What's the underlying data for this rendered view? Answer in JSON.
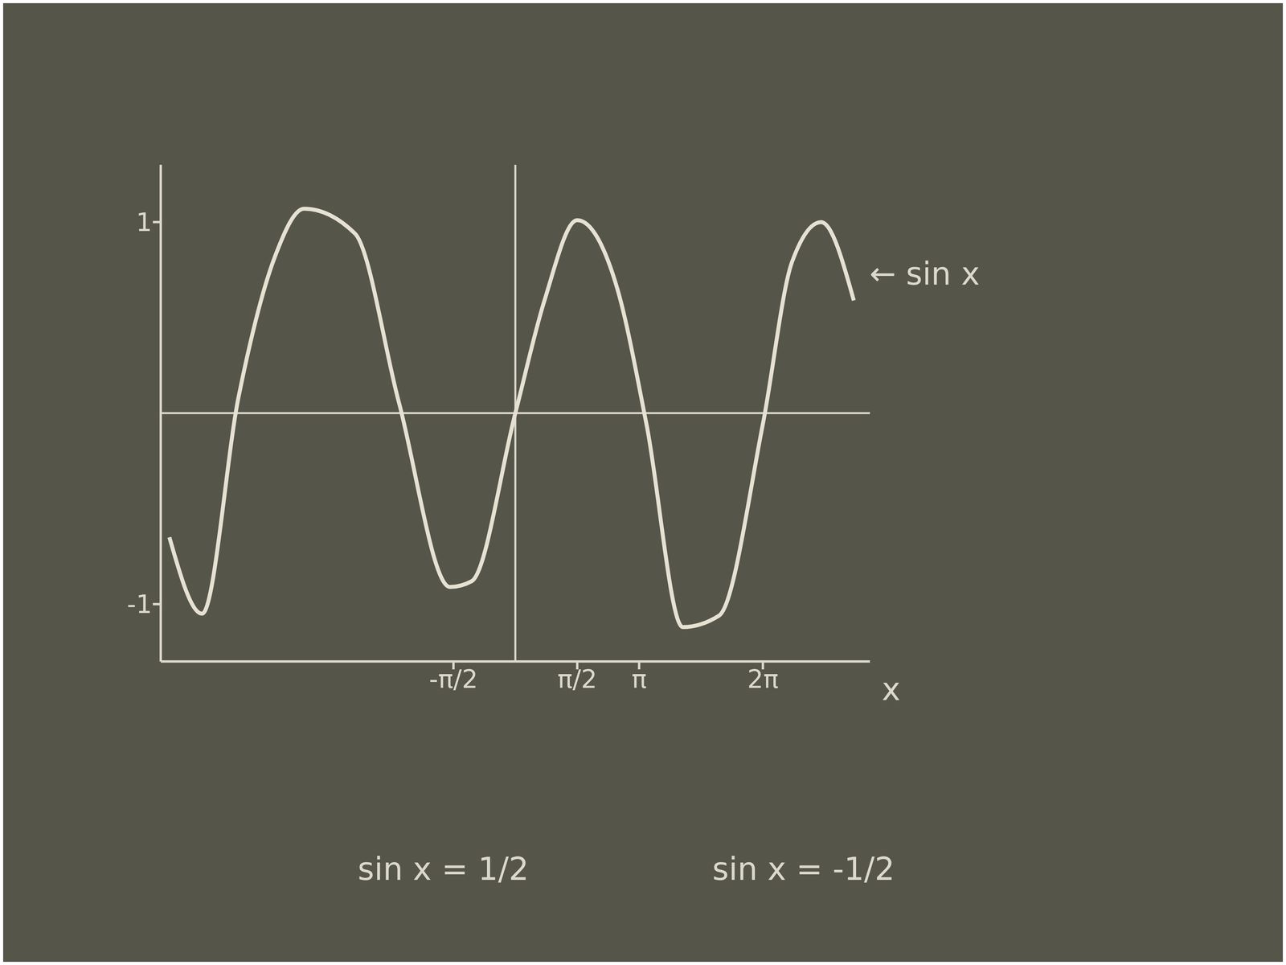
{
  "chart_data": {
    "type": "line",
    "x": [
      -8.78,
      -7.95,
      -7.02,
      -6.1,
      -5.36,
      -4.07,
      -2.96,
      -1.66,
      -1.11,
      0,
      0.74,
      1.57,
      2.59,
      3.33,
      4.25,
      5.17,
      6.28,
      7.02,
      7.76,
      8.59
    ],
    "series": [
      {
        "name": "sin x",
        "color": "#e6e1d3",
        "values": [
          -0.65,
          -1.05,
          0.09,
          0.82,
          1.07,
          0.94,
          0.06,
          -0.91,
          -0.88,
          0,
          0.59,
          1.01,
          0.65,
          -0.06,
          -1.12,
          -1.06,
          -0.06,
          0.79,
          1.0,
          0.59
        ]
      }
    ],
    "x_label": "x",
    "xlim": [
      -9,
      9
    ],
    "xticks": [
      {
        "value": -1.5708,
        "label": "-π/2"
      },
      {
        "value": 1.5708,
        "label": "π/2"
      },
      {
        "value": 3.1416,
        "label": "π"
      },
      {
        "value": 6.2832,
        "label": "2π"
      }
    ],
    "ylim": [
      -1.3,
      1.3
    ],
    "yticks": [
      -1,
      1
    ],
    "grid": false,
    "annotations": [
      "sin x = 1/2",
      "sin x = -1/2"
    ]
  }
}
